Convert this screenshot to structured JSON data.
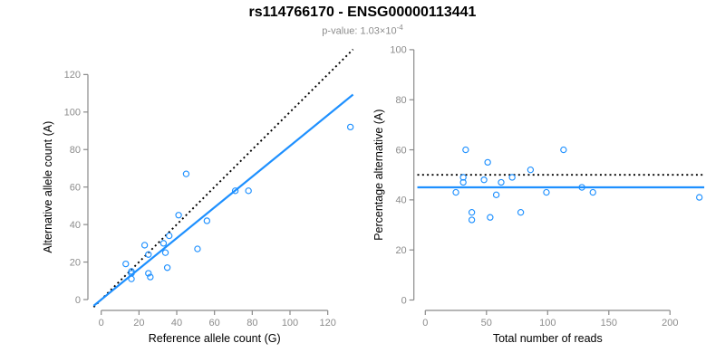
{
  "header": {
    "title": "rs114766170 - ENSG00000113441",
    "subtitle_text": "p-value: 1.03×10",
    "subtitle_exponent": "-4"
  },
  "colors": {
    "accent_blue": "#1E90FF",
    "reference_line": "#000000",
    "axis": "#8a8a8a",
    "tick_label": "#8c8c8c",
    "axis_title": "#000000",
    "title": "#000000",
    "subtitle": "#8c8c8c"
  },
  "chart_data": [
    {
      "name": "allele-count-scatter",
      "type": "scatter",
      "xlabel": "Reference allele count (G)",
      "ylabel": "Alternative allele count (A)",
      "xticks": [
        0,
        20,
        40,
        60,
        80,
        100,
        120
      ],
      "yticks": [
        0,
        20,
        40,
        60,
        80,
        100,
        120
      ],
      "xlim": [
        -4,
        133.4
      ],
      "ylim": [
        -4,
        133.4
      ],
      "grid": false,
      "legend": "none",
      "points": [
        [
          132,
          92
        ],
        [
          45,
          67
        ],
        [
          71,
          58
        ],
        [
          78,
          58
        ],
        [
          41,
          45
        ],
        [
          56,
          42
        ],
        [
          36,
          34
        ],
        [
          33,
          30
        ],
        [
          23,
          29
        ],
        [
          51,
          27
        ],
        [
          34,
          25
        ],
        [
          25,
          24
        ],
        [
          13,
          19
        ],
        [
          35,
          17
        ],
        [
          16,
          15
        ],
        [
          16,
          14
        ],
        [
          25,
          14
        ],
        [
          26,
          12
        ],
        [
          16,
          11
        ]
      ],
      "ref_line": {
        "style": "dotted",
        "meaning": "identity y=x",
        "x1": -4,
        "y1": -4,
        "x2": 133.4,
        "y2": 133.4
      },
      "fit_line": {
        "style": "solid",
        "meaning": "fit slope 0.82",
        "x1": -4,
        "y1": -3.3,
        "x2": 133.4,
        "y2": 109.3
      }
    },
    {
      "name": "percentage-scatter",
      "type": "scatter",
      "xlabel": "Total number of reads",
      "ylabel": "Percentage alternative (A)",
      "xticks": [
        0,
        50,
        100,
        150,
        200
      ],
      "yticks": [
        0,
        20,
        40,
        60,
        80,
        100
      ],
      "xlim": [
        -6.5,
        228
      ],
      "ylim": [
        0,
        100
      ],
      "grid": false,
      "legend": "none",
      "points": [
        [
          224,
          41
        ],
        [
          113,
          60
        ],
        [
          128,
          45
        ],
        [
          137,
          43
        ],
        [
          86,
          52
        ],
        [
          99,
          43
        ],
        [
          71,
          49
        ],
        [
          51,
          55
        ],
        [
          62,
          47
        ],
        [
          78,
          35
        ],
        [
          48,
          48
        ],
        [
          58,
          42
        ],
        [
          33,
          60
        ],
        [
          53,
          33
        ],
        [
          31,
          49
        ],
        [
          31,
          47
        ],
        [
          38,
          35
        ],
        [
          38,
          32
        ],
        [
          25,
          43
        ]
      ],
      "ref_line": {
        "style": "dotted",
        "meaning": "50% balance line",
        "x1": -6.5,
        "y1": 50,
        "x2": 228,
        "y2": 50
      },
      "fit_line": {
        "style": "solid",
        "meaning": "mean percentage 45",
        "x1": -6.5,
        "y1": 45,
        "x2": 228,
        "y2": 45
      }
    }
  ]
}
